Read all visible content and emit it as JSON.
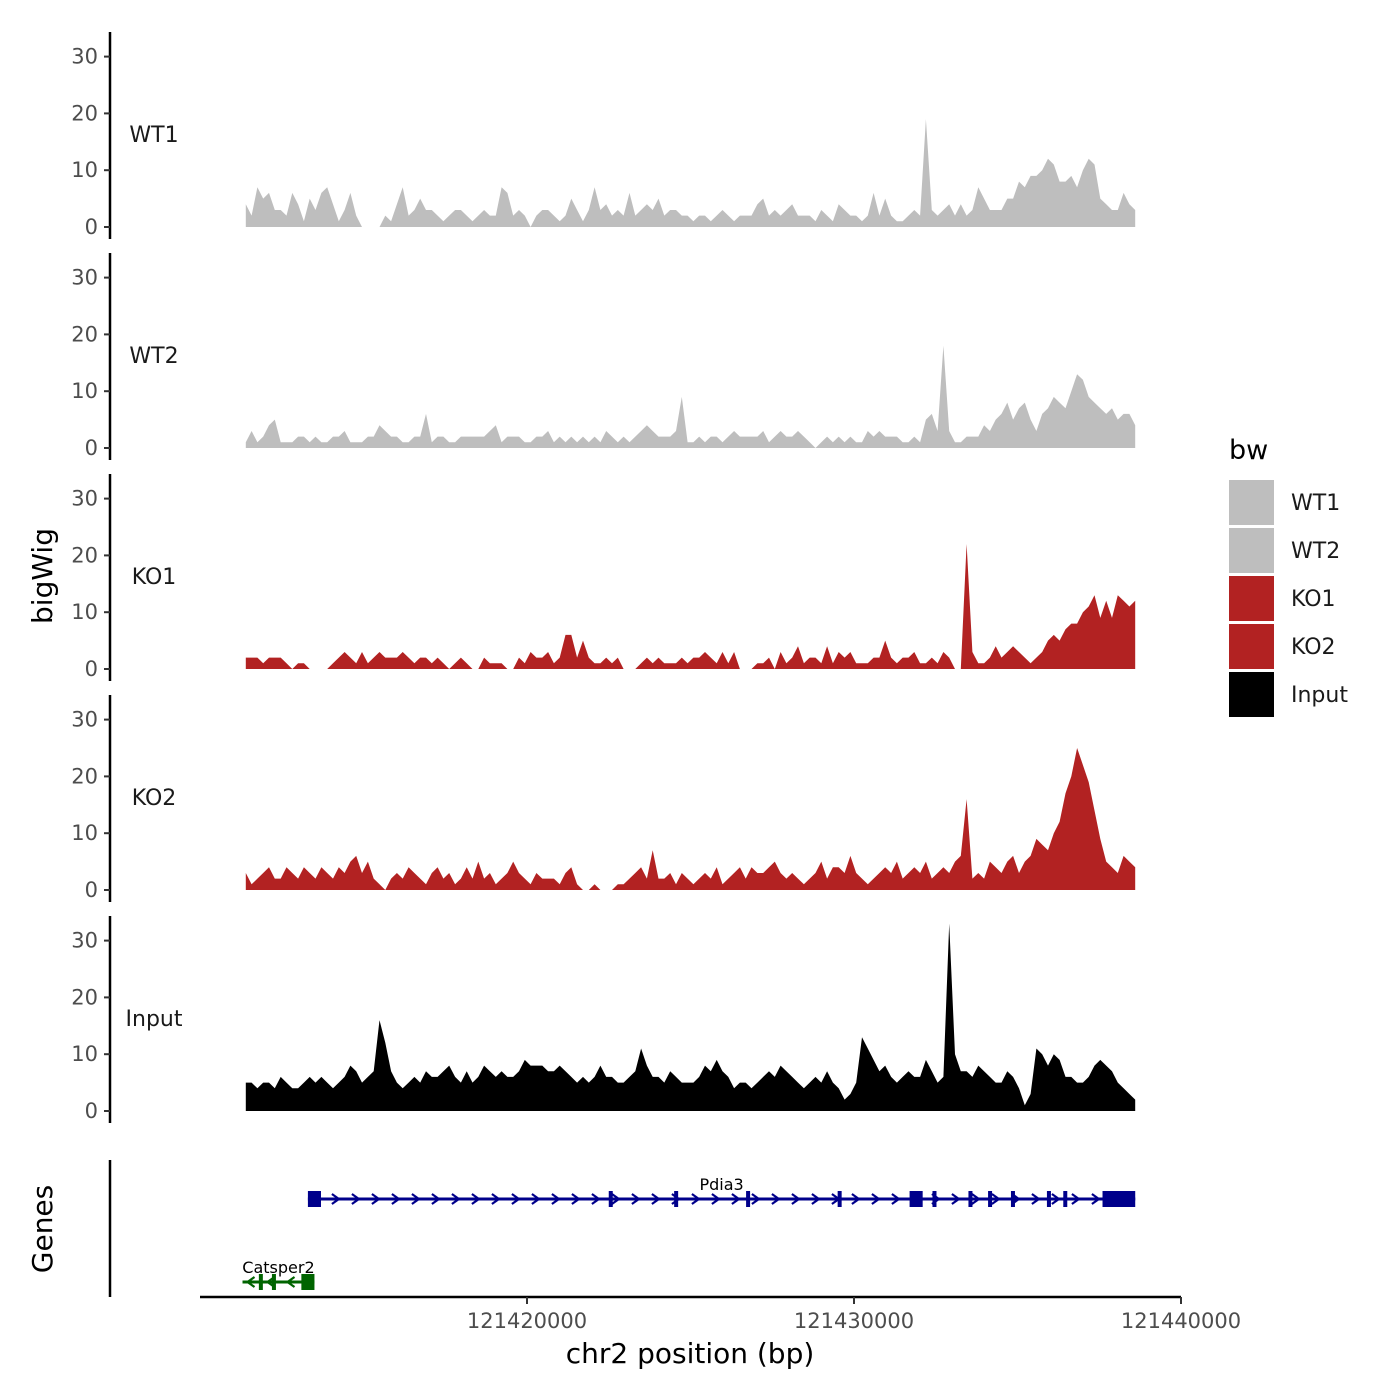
{
  "chart_data": {
    "type": "area",
    "chromosome": "chr2",
    "x_range": [
      121410000,
      121440000
    ],
    "y_range": [
      0,
      33
    ],
    "y_ticks": [
      0,
      10,
      20,
      30
    ],
    "x_ticks": [
      121420000,
      121430000,
      121440000
    ],
    "x_tick_labels": [
      "121420000",
      "121430000",
      "121440000"
    ],
    "y_tick_labels": [
      "0",
      "10",
      "20",
      "30"
    ],
    "xlabel": "chr2 position (bp)",
    "ylabel": "bigWig",
    "genes_label": "Genes",
    "legend": {
      "title": "bw",
      "entries": [
        {
          "name": "WT1",
          "color": "#bebebe"
        },
        {
          "name": "WT2",
          "color": "#bebebe"
        },
        {
          "name": "KO1",
          "color": "#b22222"
        },
        {
          "name": "KO2",
          "color": "#b22222"
        },
        {
          "name": "Input",
          "color": "#000000"
        }
      ]
    },
    "track_start": 121411400,
    "track_end": 121438600,
    "series": [
      {
        "name": "WT1",
        "color": "#bebebe",
        "values": [
          4,
          2,
          7,
          5,
          6,
          3,
          3,
          2,
          6,
          4,
          1,
          5,
          3,
          6,
          7,
          4,
          1,
          3,
          6,
          2,
          0,
          0,
          0,
          0,
          2,
          1,
          4,
          7,
          2,
          3,
          5,
          3,
          3,
          2,
          1,
          2,
          3,
          3,
          2,
          1,
          2,
          3,
          2,
          2,
          7,
          6,
          2,
          3,
          2,
          0,
          2,
          3,
          3,
          2,
          1,
          2,
          5,
          3,
          1,
          3,
          7,
          3,
          4,
          2,
          3,
          2,
          6,
          2,
          3,
          4,
          3,
          5,
          2,
          3,
          3,
          2,
          2,
          1,
          2,
          2,
          1,
          2,
          3,
          2,
          1,
          2,
          2,
          2,
          4,
          5,
          2,
          3,
          2,
          3,
          4,
          2,
          2,
          2,
          1,
          3,
          2,
          1,
          4,
          3,
          2,
          2,
          1,
          2,
          6,
          2,
          5,
          2,
          1,
          1,
          2,
          3,
          2,
          19,
          3,
          2,
          3,
          4,
          2,
          4,
          2,
          3,
          7,
          5,
          3,
          3,
          3,
          5,
          5,
          8,
          7,
          9,
          9,
          10,
          12,
          11,
          8,
          8,
          9,
          7,
          10,
          12,
          11,
          5,
          4,
          3,
          3,
          6,
          4,
          3
        ]
      },
      {
        "name": "WT2",
        "color": "#bebebe",
        "values": [
          1,
          3,
          1,
          2,
          4,
          5,
          1,
          1,
          1,
          2,
          2,
          1,
          2,
          1,
          1,
          2,
          2,
          3,
          1,
          1,
          1,
          2,
          2,
          4,
          3,
          2,
          2,
          1,
          1,
          2,
          2,
          6,
          1,
          2,
          2,
          1,
          1,
          2,
          2,
          2,
          2,
          2,
          3,
          4,
          1,
          2,
          2,
          2,
          1,
          1,
          2,
          2,
          3,
          1,
          2,
          1,
          2,
          1,
          2,
          1,
          2,
          1,
          3,
          2,
          1,
          2,
          1,
          2,
          3,
          4,
          3,
          2,
          2,
          2,
          3,
          9,
          1,
          1,
          2,
          1,
          2,
          2,
          1,
          2,
          3,
          2,
          2,
          2,
          2,
          3,
          1,
          2,
          3,
          2,
          2,
          3,
          2,
          1,
          0,
          1,
          2,
          1,
          2,
          1,
          2,
          1,
          1,
          3,
          2,
          3,
          2,
          2,
          2,
          1,
          1,
          2,
          1,
          5,
          6,
          3,
          18,
          3,
          1,
          1,
          2,
          2,
          2,
          4,
          3,
          5,
          6,
          8,
          5,
          7,
          8,
          5,
          3,
          6,
          7,
          9,
          8,
          7,
          10,
          13,
          12,
          9,
          8,
          7,
          6,
          7,
          5,
          6,
          6,
          4
        ]
      },
      {
        "name": "KO1",
        "color": "#b22222",
        "values": [
          2,
          2,
          2,
          1,
          2,
          2,
          2,
          1,
          0,
          1,
          1,
          0,
          0,
          0,
          0,
          1,
          2,
          3,
          2,
          1,
          3,
          1,
          2,
          3,
          2,
          2,
          2,
          3,
          2,
          1,
          2,
          2,
          1,
          2,
          1,
          0,
          1,
          2,
          1,
          0,
          0,
          2,
          1,
          1,
          1,
          0,
          0,
          2,
          1,
          3,
          2,
          2,
          3,
          1,
          2,
          6,
          6,
          2,
          5,
          2,
          1,
          1,
          2,
          1,
          2,
          0,
          0,
          0,
          1,
          2,
          1,
          2,
          1,
          1,
          1,
          2,
          1,
          2,
          2,
          3,
          2,
          1,
          3,
          1,
          3,
          0,
          0,
          0,
          1,
          1,
          2,
          0,
          3,
          1,
          2,
          4,
          1,
          2,
          2,
          1,
          4,
          1,
          3,
          2,
          3,
          1,
          1,
          1,
          2,
          2,
          5,
          2,
          1,
          2,
          2,
          3,
          1,
          1,
          2,
          1,
          3,
          2,
          0,
          0,
          22,
          3,
          1,
          1,
          2,
          4,
          2,
          3,
          4,
          3,
          2,
          1,
          2,
          3,
          5,
          6,
          5,
          7,
          8,
          8,
          10,
          11,
          13,
          9,
          12,
          9,
          13,
          12,
          11,
          12
        ]
      },
      {
        "name": "KO2",
        "color": "#b22222",
        "values": [
          3,
          1,
          2,
          3,
          4,
          2,
          2,
          4,
          3,
          2,
          4,
          3,
          2,
          4,
          3,
          2,
          4,
          3,
          5,
          6,
          3,
          5,
          2,
          1,
          0,
          2,
          3,
          2,
          4,
          3,
          2,
          1,
          3,
          4,
          2,
          3,
          1,
          2,
          4,
          2,
          5,
          2,
          3,
          1,
          2,
          3,
          5,
          3,
          2,
          1,
          3,
          2,
          2,
          2,
          1,
          3,
          4,
          1,
          0,
          0,
          1,
          0,
          0,
          0,
          1,
          1,
          2,
          3,
          4,
          2,
          7,
          2,
          2,
          3,
          1,
          3,
          2,
          1,
          2,
          3,
          2,
          4,
          1,
          2,
          3,
          4,
          2,
          4,
          3,
          3,
          4,
          5,
          3,
          2,
          3,
          2,
          1,
          2,
          3,
          5,
          2,
          4,
          4,
          3,
          6,
          3,
          2,
          1,
          2,
          3,
          4,
          3,
          5,
          2,
          3,
          4,
          3,
          5,
          2,
          3,
          4,
          3,
          5,
          6,
          16,
          2,
          3,
          2,
          5,
          4,
          3,
          5,
          6,
          3,
          5,
          6,
          9,
          8,
          7,
          10,
          12,
          17,
          20,
          25,
          22,
          19,
          14,
          9,
          5,
          4,
          3,
          6,
          5,
          4
        ]
      },
      {
        "name": "Input",
        "color": "#000000",
        "values": [
          5,
          5,
          4,
          5,
          5,
          4,
          6,
          5,
          4,
          4,
          5,
          6,
          5,
          6,
          5,
          4,
          5,
          6,
          8,
          7,
          5,
          6,
          7,
          16,
          12,
          7,
          5,
          4,
          5,
          6,
          5,
          7,
          6,
          6,
          7,
          8,
          6,
          5,
          7,
          5,
          6,
          8,
          7,
          6,
          7,
          6,
          6,
          7,
          9,
          8,
          8,
          8,
          7,
          7,
          8,
          7,
          6,
          5,
          6,
          5,
          6,
          8,
          6,
          6,
          5,
          5,
          6,
          7,
          11,
          8,
          6,
          6,
          5,
          7,
          6,
          5,
          5,
          5,
          6,
          8,
          7,
          9,
          7,
          6,
          4,
          5,
          5,
          4,
          5,
          6,
          7,
          6,
          8,
          7,
          6,
          5,
          4,
          5,
          6,
          5,
          7,
          5,
          4,
          2,
          3,
          5,
          13,
          11,
          9,
          7,
          8,
          6,
          5,
          6,
          7,
          6,
          6,
          9,
          7,
          5,
          6,
          33,
          10,
          7,
          7,
          6,
          8,
          7,
          6,
          5,
          5,
          7,
          6,
          4,
          1,
          3,
          11,
          10,
          8,
          10,
          9,
          6,
          6,
          5,
          5,
          6,
          8,
          9,
          8,
          7,
          5,
          4,
          3,
          2
        ]
      }
    ],
    "genes": [
      {
        "name": "Pdia3",
        "strand": "+",
        "start": 121413300,
        "end": 121438600,
        "color": "#00008b",
        "exons": [
          [
            121413300,
            121413700
          ],
          [
            121422500,
            121422600
          ],
          [
            121424500,
            121424600
          ],
          [
            121426700,
            121426800
          ],
          [
            121429500,
            121429600
          ],
          [
            121431700,
            121432100
          ],
          [
            121432400,
            121432500
          ],
          [
            121433500,
            121433600
          ],
          [
            121434100,
            121434200
          ],
          [
            121434800,
            121434900
          ],
          [
            121435900,
            121436000
          ],
          [
            121436400,
            121436500
          ],
          [
            121437600,
            121438600
          ]
        ]
      },
      {
        "name": "Catsper2",
        "strand": "-",
        "start": 121411300,
        "end": 121413500,
        "color": "#006400",
        "exons": [
          [
            121411800,
            121411900
          ],
          [
            121412200,
            121412300
          ],
          [
            121413100,
            121413500
          ]
        ]
      }
    ]
  }
}
